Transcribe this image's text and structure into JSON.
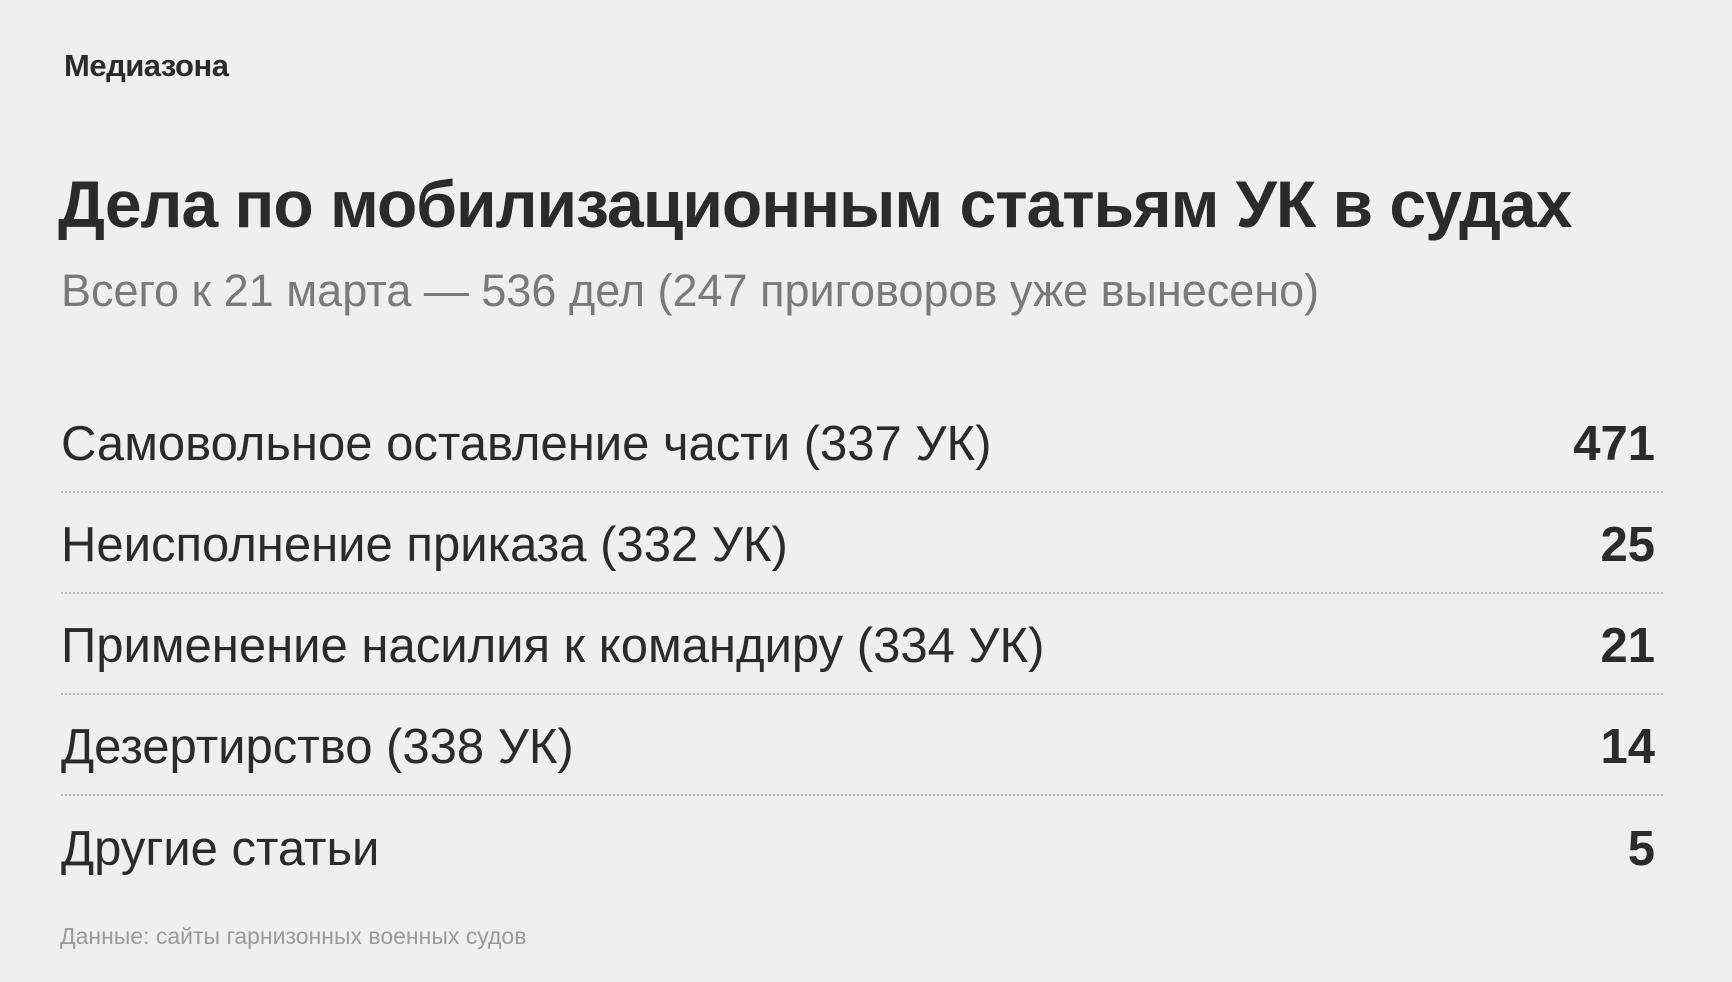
{
  "logo": "Медиазона",
  "title": "Дела по мобилизационным статьям УК в судах",
  "subtitle": "Всего к 21 марта — 536 дел (247 приговоров уже вынесено)",
  "rows": [
    {
      "label": "Самовольное оставление части (337 УК)",
      "value": "471"
    },
    {
      "label": "Неисполнение приказа (332 УК)",
      "value": "25"
    },
    {
      "label": "Применение насилия к командиру (334 УК)",
      "value": "21"
    },
    {
      "label": "Дезертирство (338 УК)",
      "value": "14"
    },
    {
      "label": "Другие статьи",
      "value": "5"
    }
  ],
  "footer": "Данные: сайты гарнизонных военных судов"
}
